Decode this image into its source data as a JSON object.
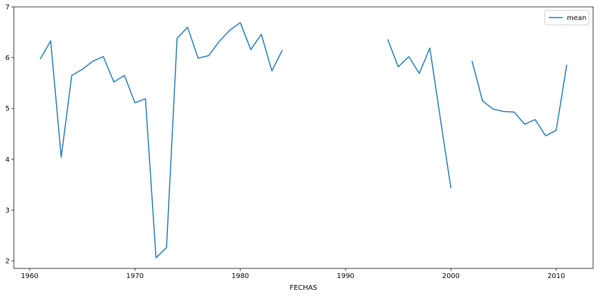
{
  "chart_data": {
    "type": "line",
    "xlabel": "FECHAS",
    "ylabel": "",
    "xlim": [
      1958.5,
      2013.5
    ],
    "ylim": [
      1.85,
      7.0
    ],
    "xticks": [
      1960,
      1970,
      1980,
      1990,
      2000,
      2010
    ],
    "yticks": [
      2,
      3,
      4,
      5,
      6,
      7
    ],
    "legend": {
      "position": "top-right",
      "entries": [
        "mean"
      ]
    },
    "grid": false,
    "series": [
      {
        "name": "mean",
        "color": "#1f77b4",
        "points": [
          [
            1961,
            5.97
          ],
          [
            1962,
            6.33
          ],
          [
            1963,
            4.04
          ],
          [
            1964,
            5.65
          ],
          [
            1965,
            5.77
          ],
          [
            1966,
            5.93
          ],
          [
            1967,
            6.02
          ],
          [
            1968,
            5.52
          ],
          [
            1969,
            5.65
          ],
          [
            1970,
            5.11
          ],
          [
            1971,
            5.19
          ],
          [
            1972,
            2.06
          ],
          [
            1973,
            2.26
          ],
          [
            1974,
            6.38
          ],
          [
            1975,
            6.6
          ],
          [
            1976,
            5.99
          ],
          [
            1977,
            6.04
          ],
          [
            1978,
            6.32
          ],
          [
            1979,
            6.54
          ],
          [
            1980,
            6.69
          ],
          [
            1981,
            6.16
          ],
          [
            1982,
            6.46
          ],
          [
            1983,
            5.74
          ],
          [
            1984,
            6.15
          ],
          [
            1985,
            null
          ],
          [
            1986,
            null
          ],
          [
            1987,
            null
          ],
          [
            1988,
            null
          ],
          [
            1989,
            null
          ],
          [
            1990,
            null
          ],
          [
            1991,
            null
          ],
          [
            1992,
            null
          ],
          [
            1993,
            null
          ],
          [
            1994,
            6.36
          ],
          [
            1995,
            5.82
          ],
          [
            1996,
            6.02
          ],
          [
            1997,
            5.69
          ],
          [
            1998,
            6.19
          ],
          [
            1999,
            4.8
          ],
          [
            2000,
            3.43
          ],
          [
            2001,
            null
          ],
          [
            2002,
            5.94
          ],
          [
            2003,
            5.15
          ],
          [
            2004,
            4.99
          ],
          [
            2005,
            4.94
          ],
          [
            2006,
            4.93
          ],
          [
            2007,
            4.69
          ],
          [
            2008,
            4.78
          ],
          [
            2009,
            4.46
          ],
          [
            2010,
            4.57
          ],
          [
            2011,
            5.86
          ]
        ]
      }
    ]
  }
}
